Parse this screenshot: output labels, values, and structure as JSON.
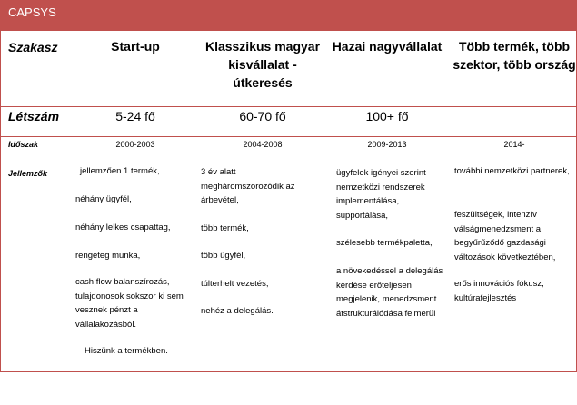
{
  "title": "CAPSYS",
  "colors": {
    "accent": "#c0504d",
    "title_text": "#ffffff"
  },
  "header": {
    "row_label": "Szakasz",
    "columns": [
      "Start-up",
      "Klasszikus magyar kisvállalat - útkeresés",
      "Hazai nagyvállalat",
      "Több termék, több szektor, több ország"
    ]
  },
  "headcount": {
    "label": "Létszám",
    "values": [
      "5-24 fő",
      "60-70 fő",
      "100+ fő",
      ""
    ]
  },
  "period": {
    "label": "Időszak",
    "values": [
      "2000-2003",
      "2004-2008",
      "2009-2013",
      "2014-"
    ]
  },
  "traits": {
    "label": "Jellemzők",
    "columns": [
      [
        "jellemzően 1 termék,",
        "néhány ügyfél,",
        "néhány lelkes csapattag,",
        "rengeteg munka,",
        "cash flow balanszírozás, tulajdonosok sokszor ki sem vesznek pénzt a vállalakozásból.",
        "Hiszünk a termékben."
      ],
      [
        "3 év alatt megháromszorozódik az árbevétel,",
        "több termék,",
        "több ügyfél,",
        "túlterhelt vezetés,",
        "nehéz a delegálás."
      ],
      [
        "ügyfelek igényei szerint nemzetközi rendszerek implementálása, supportálása,",
        "szélesebb termékpaletta,",
        "a növekedéssel a delegálás kérdése erőteljesen megjelenik, menedzsment átstrukturálódása felmerül"
      ],
      [
        "további nemzetközi partnerek,",
        "feszültségek, intenzív válságmenedzsment a begyűrűződő gazdasági változások következtében,",
        "erős innovációs fókusz, kultúrafejlesztés"
      ]
    ]
  }
}
